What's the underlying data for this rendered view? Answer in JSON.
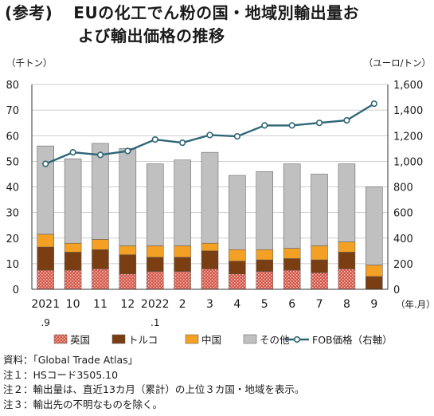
{
  "title": {
    "tag": "(参考)",
    "line1": "EUの化工でん粉の国・地域別輸出量お",
    "line2": "よび輸出価格の推移"
  },
  "chart_data": {
    "type": "bar",
    "stacked": true,
    "left_unit": "（千トン）",
    "right_unit": "（ユーロ/トン）",
    "x_unit": "（年.月）",
    "categories": [
      "2021\n.9",
      "10",
      "11",
      "12",
      "2022\n.1",
      "2",
      "3",
      "4",
      "5",
      "6",
      "7",
      "8",
      "9"
    ],
    "left_axis": {
      "min": 0,
      "max": 80,
      "step": 10,
      "ticks": [
        "0",
        "10",
        "20",
        "30",
        "40",
        "50",
        "60",
        "70",
        "80"
      ]
    },
    "right_axis": {
      "min": 0,
      "max": 1600,
      "step": 200,
      "ticks": [
        "0",
        "200",
        "400",
        "600",
        "800",
        "1,000",
        "1,200",
        "1,400",
        "1,600"
      ]
    },
    "series": [
      {
        "name": "英国",
        "axis": "left",
        "color": "#d4584a",
        "values": [
          7.5,
          7.5,
          8.0,
          6.0,
          7.0,
          7.0,
          8.0,
          6.0,
          7.0,
          7.5,
          6.5,
          8.0,
          0
        ]
      },
      {
        "name": "トルコ",
        "axis": "left",
        "color": "#7a3e12",
        "values": [
          9.0,
          7.0,
          7.5,
          7.5,
          5.5,
          5.5,
          7.0,
          5.0,
          4.5,
          4.5,
          5.0,
          6.5,
          5.0
        ]
      },
      {
        "name": "中国",
        "axis": "left",
        "color": "#f4a024",
        "values": [
          5.0,
          3.5,
          4.0,
          3.5,
          4.5,
          4.5,
          3.0,
          4.5,
          4.0,
          4.0,
          5.5,
          4.0,
          4.5
        ]
      },
      {
        "name": "その他",
        "axis": "left",
        "color": "#c0c0c0",
        "values": [
          34.5,
          33.0,
          37.5,
          38.0,
          32.0,
          33.5,
          35.5,
          29.0,
          30.5,
          33.0,
          28.0,
          30.5,
          30.5
        ]
      },
      {
        "name": "FOB価格（右軸）",
        "axis": "right",
        "type": "line",
        "color": "#2f6677",
        "values": [
          980,
          1070,
          1050,
          1080,
          1170,
          1145,
          1205,
          1195,
          1280,
          1280,
          1300,
          1320,
          1450
        ]
      }
    ],
    "grid": true
  },
  "notes": [
    "資料：「Global Trade Atlas」",
    "注１：HSコード3505.10",
    "注２：輸出量は、直近13カ月（累計）の上位３カ国・地域を表示。",
    "注３：輸出先の不明なものを除く。"
  ]
}
